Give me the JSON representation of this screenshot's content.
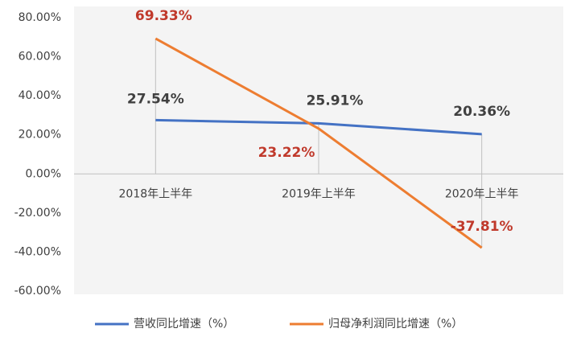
{
  "chart_data": {
    "type": "line",
    "categories": [
      "2018年上半年",
      "2019年上半年",
      "2020年上半年"
    ],
    "series": [
      {
        "name": "营收同比增速（%）",
        "color": "#4472c4",
        "values": [
          27.54,
          25.91,
          20.36
        ],
        "value_labels": [
          "27.54%",
          "25.91%",
          "20.36%"
        ]
      },
      {
        "name": "归母净利润同比增速（%）",
        "color": "#ed7d31",
        "values": [
          69.33,
          23.22,
          -37.81
        ],
        "value_labels": [
          "69.33%",
          "23.22%",
          "-37.81%"
        ]
      }
    ],
    "ylim": [
      -60,
      80
    ],
    "yticks": [
      {
        "value": -60,
        "label": "-60.00%"
      },
      {
        "value": -40,
        "label": "-40.00%"
      },
      {
        "value": -20,
        "label": "-20.00%"
      },
      {
        "value": 0,
        "label": "0.00%"
      },
      {
        "value": 20,
        "label": "20.00%"
      },
      {
        "value": 40,
        "label": "40.00%"
      },
      {
        "value": 60,
        "label": "60.00%"
      },
      {
        "value": 80,
        "label": "80.00%"
      }
    ],
    "legend": "bottom"
  }
}
